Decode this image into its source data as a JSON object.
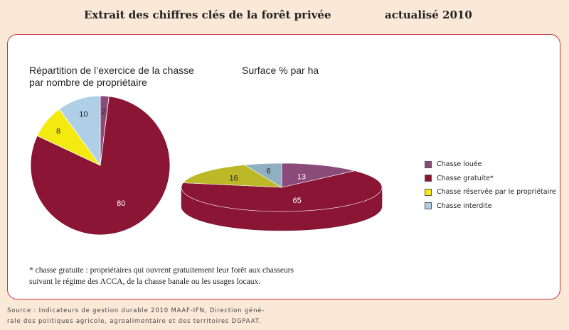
{
  "header": {
    "title": "Extrait des chiffres clés de la forêt privée",
    "date": "actualisé 2010"
  },
  "colors": {
    "louee": "#8a4a7a",
    "gratuite": "#8a1535",
    "reservee": "#f5ea10",
    "interdite": "#aecfe6",
    "reservee_3d": "#bdb828",
    "interdite_3d": "#8fb0c2"
  },
  "chart_data": [
    {
      "type": "pie",
      "title": "Répartition de l’exercice de la chasse",
      "subtitle": "par nombre de propriétaire",
      "slices": [
        {
          "label": "Chasse louée",
          "value": 2
        },
        {
          "label": "Chasse gratuite*",
          "value": 80
        },
        {
          "label": "Chasse réservée par le propriétaire",
          "value": 8
        },
        {
          "label": "Chasse interdite",
          "value": 10
        }
      ]
    },
    {
      "type": "pie",
      "title": "Surface % par ha",
      "style": "3d",
      "slices": [
        {
          "label": "Chasse louée",
          "value": 13
        },
        {
          "label": "Chasse gratuite*",
          "value": 65
        },
        {
          "label": "Chasse réservée par le propriétaire",
          "value": 16
        },
        {
          "label": "Chasse interdite",
          "value": 6
        }
      ]
    }
  ],
  "legend": [
    {
      "label": "Chasse louée",
      "color": "#8a4a7a"
    },
    {
      "label": "Chasse gratuite*",
      "color": "#8a1535"
    },
    {
      "label": "Chasse réservée par le propriétaire",
      "color": "#f5ea10"
    },
    {
      "label": "Chasse interdite",
      "color": "#aecfe6"
    }
  ],
  "footnote": {
    "line1": "* chasse gratuite : propriétaires qui ouvrent gratuitement leur forêt aux chasseurs",
    "line2": "suivant le régime des ACCA, de la chasse banale ou les usages locaux."
  },
  "source": {
    "line1": "Source : Indicateurs de gestion durable 2010 MAAF-IFN, Direction géné-",
    "line2": "rale des politiques agricole, agroalimentaire et des territoires DGPAAT."
  }
}
